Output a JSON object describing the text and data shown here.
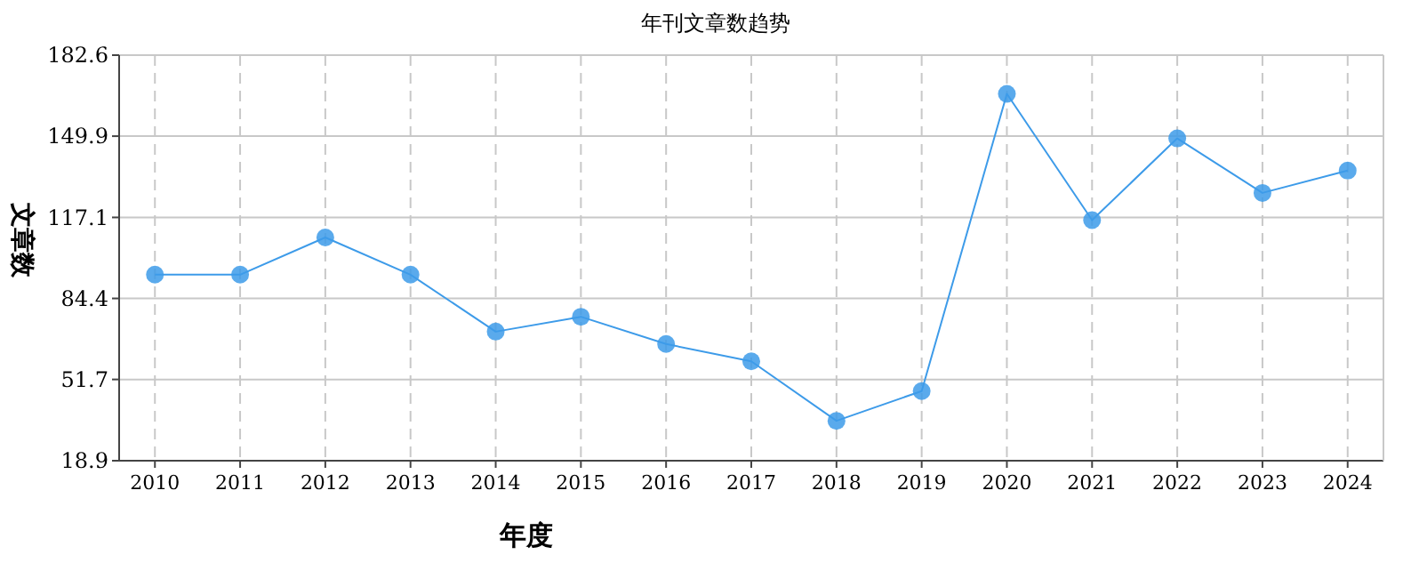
{
  "chart_data": {
    "type": "line",
    "title": "年刊文章数趋势",
    "xlabel": "年度",
    "ylabel": "文章数",
    "categories": [
      "2010",
      "2011",
      "2012",
      "2013",
      "2014",
      "2015",
      "2016",
      "2017",
      "2018",
      "2019",
      "2020",
      "2021",
      "2022",
      "2023",
      "2024"
    ],
    "series": [
      {
        "color": "#3d9be9",
        "values": [
          94,
          94,
          109,
          94,
          71,
          77,
          66,
          59,
          35,
          47,
          167,
          116,
          149,
          127,
          136
        ]
      }
    ],
    "ylim": [
      18.9,
      182.6
    ],
    "yticks": [
      18.9,
      51.7,
      84.4,
      117.1,
      149.9,
      182.6
    ],
    "grid": true,
    "marker": "circle",
    "line_style": "solid"
  }
}
